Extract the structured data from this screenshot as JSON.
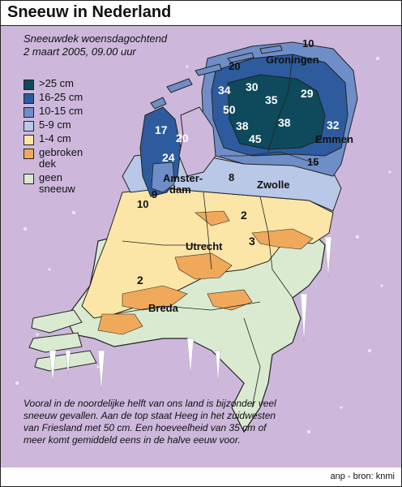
{
  "title": "Sneeuw in Nederland",
  "subtitle": {
    "line1": "Sneeuwdek woensdagochtend",
    "line2": "2 maart 2005, 09.00 uur"
  },
  "legend": [
    {
      "label": ">25 cm",
      "color": "#0e4a5c"
    },
    {
      "label": "16-25 cm",
      "color": "#2d5b9e"
    },
    {
      "label": "10-15 cm",
      "color": "#6f8ec8"
    },
    {
      "label": "5-9 cm",
      "color": "#b9c8e6"
    },
    {
      "label": "1-4 cm",
      "color": "#fbe6a8"
    },
    {
      "label": "gebroken dek",
      "color": "#f0a95a"
    },
    {
      "label": "geen sneeuw",
      "color": "#d9ead0"
    }
  ],
  "places": {
    "groningen": "Groningen",
    "emmen": "Emmen",
    "zwolle": "Zwolle",
    "amsterdam_line1": "Amster-",
    "amsterdam_line2": "dam",
    "utrecht": "Utrecht",
    "breda": "Breda"
  },
  "depths": {
    "d10_ne": "10",
    "d20": "20",
    "d34": "34",
    "d30": "30",
    "d35": "35",
    "d29": "29",
    "d50": "50",
    "d38_w": "38",
    "d38_e": "38",
    "d32": "32",
    "d45": "45",
    "d15": "15",
    "d17": "17",
    "d20_nh": "20",
    "d24": "24",
    "d8": "8",
    "d9": "9",
    "d10_w": "10",
    "d2_c": "2",
    "d3": "3",
    "d2_s": "2"
  },
  "caption": "Vooral in de noordelijke helft van ons land is bijzonder veel sneeuw gevallen. Aan de top staat Heeg in het zuidwesten van Friesland met 50 cm.  Een hoeveelheid van 35 cm of  meer komt gemiddeld eens in de halve eeuw voor.",
  "source": "anp - bron: knmi"
}
